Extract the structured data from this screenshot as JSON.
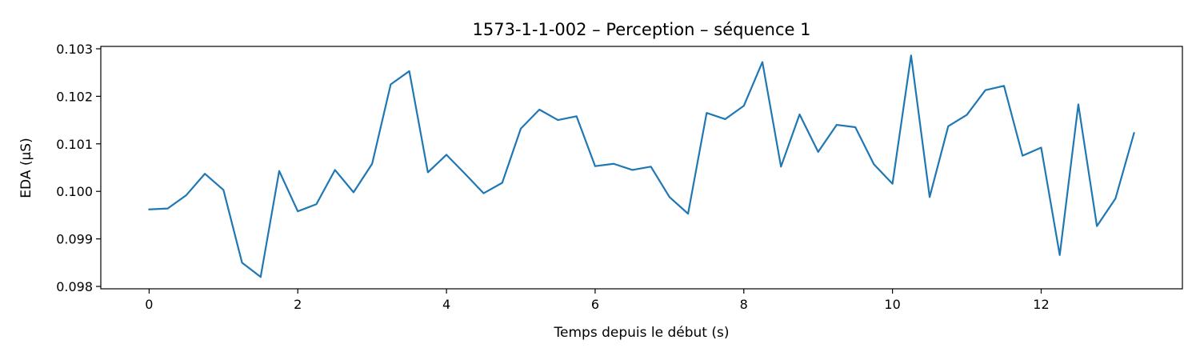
{
  "chart_data": {
    "type": "line",
    "title": "1573-1-1-002 – Perception – séquence 1",
    "xlabel": "Temps depuis le début (s)",
    "ylabel": "EDA (µS)",
    "xlim": [
      -0.65,
      13.9
    ],
    "ylim": [
      0.09795,
      0.10305
    ],
    "grid": false,
    "x_ticks": [
      0,
      2,
      4,
      6,
      8,
      10,
      12
    ],
    "x_tick_labels": [
      "0",
      "2",
      "4",
      "6",
      "8",
      "10",
      "12"
    ],
    "y_ticks": [
      0.098,
      0.099,
      0.1,
      0.101,
      0.102,
      0.103
    ],
    "y_tick_labels": [
      "0.098",
      "0.099",
      "0.100",
      "0.101",
      "0.102",
      "0.103"
    ],
    "series": [
      {
        "color": "#1f77b4",
        "x": [
          0,
          0.25,
          0.5,
          0.75,
          1.0,
          1.25,
          1.5,
          1.75,
          2.0,
          2.25,
          2.5,
          2.75,
          3.0,
          3.25,
          3.5,
          3.75,
          4.0,
          4.25,
          4.5,
          4.75,
          5.0,
          5.25,
          5.5,
          5.75,
          6.0,
          6.25,
          6.5,
          6.75,
          7.0,
          7.25,
          7.5,
          7.75,
          8.0,
          8.25,
          8.5,
          8.75,
          9.0,
          9.25,
          9.5,
          9.75,
          10.0,
          10.25,
          10.5,
          10.75,
          11.0,
          11.25,
          11.5,
          11.75,
          12.0,
          12.25,
          12.5,
          12.75,
          13.0,
          13.25
        ],
        "y": [
          0.09962,
          0.09964,
          0.09992,
          0.10037,
          0.10003,
          0.0985,
          0.0982,
          0.10043,
          0.09958,
          0.09973,
          0.10045,
          0.09998,
          0.10058,
          0.10225,
          0.10253,
          0.1004,
          0.10077,
          0.10037,
          0.09996,
          0.10018,
          0.10132,
          0.10172,
          0.1015,
          0.10158,
          0.10053,
          0.10058,
          0.10045,
          0.10052,
          0.09988,
          0.09953,
          0.10165,
          0.10152,
          0.1018,
          0.10272,
          0.10052,
          0.10162,
          0.10083,
          0.1014,
          0.10135,
          0.10057,
          0.10016,
          0.10286,
          0.09988,
          0.10137,
          0.10161,
          0.10213,
          0.10222,
          0.10075,
          0.10092,
          0.09866,
          0.10183,
          0.09927,
          0.09985,
          0.10123
        ]
      }
    ]
  }
}
